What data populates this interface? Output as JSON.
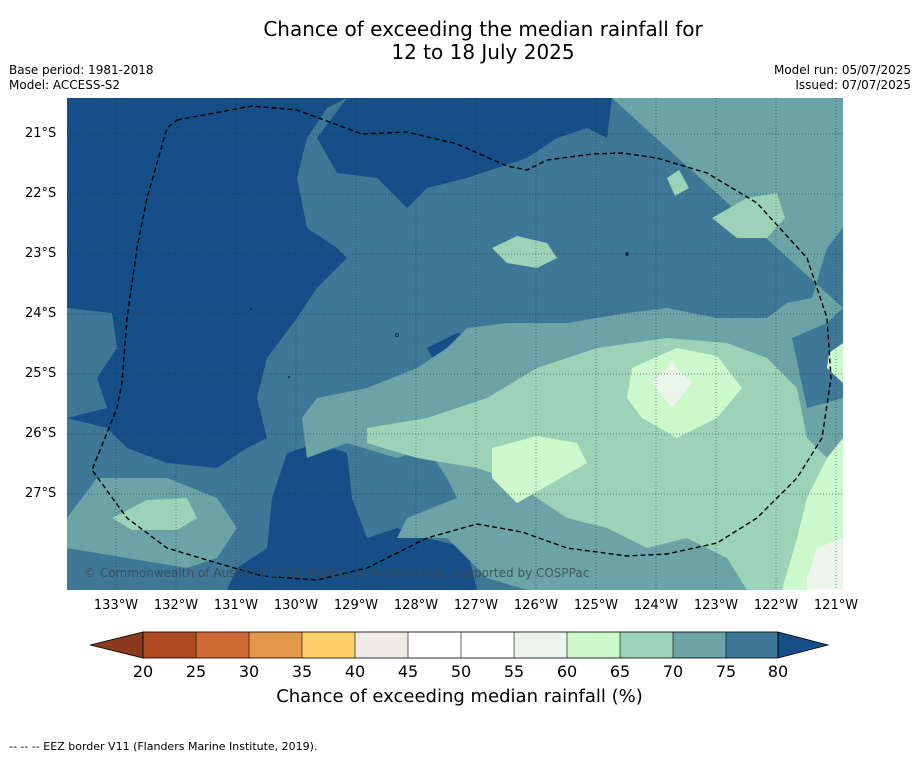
{
  "title_line1": "Chance of exceeding the median rainfall for",
  "title_line2": "12 to 18 July 2025",
  "base_period": "Base period: 1981-2018",
  "model": "Model: ACCESS-S2",
  "model_run": "Model run: 05/07/2025",
  "issued": "Issued: 07/07/2025",
  "copyright": "© Commonwealth of Australia 2025, Bureau of Meteorology, supported by COSPPac",
  "latitudes": [
    "21°S",
    "22°S",
    "23°S",
    "24°S",
    "25°S",
    "26°S",
    "27°S"
  ],
  "longitudes": [
    "133°W",
    "132°W",
    "131°W",
    "130°W",
    "129°W",
    "128°W",
    "127°W",
    "126°W",
    "125°W",
    "124°W",
    "123°W",
    "122°W",
    "121°W"
  ],
  "colorbar": {
    "ticks": [
      "20",
      "25",
      "30",
      "35",
      "40",
      "45",
      "50",
      "55",
      "60",
      "65",
      "70",
      "75",
      "80"
    ],
    "colors": [
      "#8b3a1e",
      "#b04a24",
      "#cf6a35",
      "#e3974a",
      "#fdd069",
      "#eeebe5",
      "#ffffff",
      "#ffffff",
      "#ebf5eb",
      "#ccf8cb",
      "#9cd2b7",
      "#6ba3a7",
      "#3f7897",
      "#164f88"
    ],
    "label": "Chance of exceeding median rainfall (%)"
  },
  "footer": "--  --  -- EEZ border V11 (Flanders Marine Institute, 2019).",
  "colors": {
    "c80": "#164f88",
    "c75": "#3f7897",
    "c70": "#6ba3a7",
    "c65": "#9cd2b7",
    "c60": "#ccf8cb",
    "c55": "#ebf5eb"
  }
}
